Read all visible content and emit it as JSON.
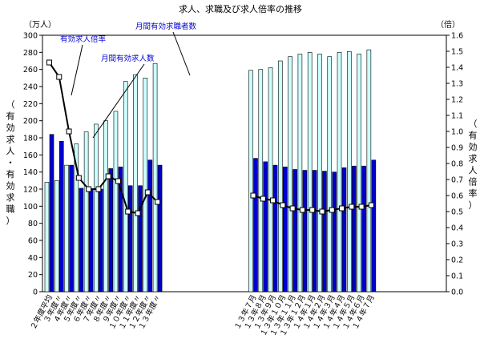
{
  "chart_data": {
    "type": "bar",
    "title": "求人、求職及び求人倍率の推移",
    "left_unit": "（万人）",
    "right_unit": "（倍）",
    "left_axis_label": [
      "（",
      "有",
      "効",
      "求",
      "人",
      "・",
      "有",
      "効",
      "求",
      "職",
      "）"
    ],
    "right_axis_label": [
      "（",
      "有",
      "効",
      "求",
      "人",
      "倍",
      "率",
      "）"
    ],
    "ylim_left": [
      0,
      300
    ],
    "ylim_right": [
      0,
      1.6
    ],
    "left_ticks": [
      "0",
      "20",
      "40",
      "60",
      "80",
      "100",
      "120",
      "140",
      "160",
      "180",
      "200",
      "220",
      "240",
      "260",
      "280",
      "300"
    ],
    "right_ticks": [
      "0.0",
      "0.1",
      "0.2",
      "0.3",
      "0.4",
      "0.5",
      "0.6",
      "0.7",
      "0.8",
      "0.9",
      "1.0",
      "1.1",
      "1.2",
      "1.3",
      "1.4",
      "1.5",
      "1.6"
    ],
    "categories": [
      "２年度平均",
      "３年度〃",
      "４年度〃",
      "５年度〃",
      "６年度〃",
      "７年度〃",
      "８年度〃",
      "９年度〃",
      "１０年度〃",
      "１１年度〃",
      "１２年度〃",
      "１３年度〃",
      "１３年７月",
      "１３年８月",
      "１３年９月",
      "１３年１０月",
      "１３年１１月",
      "１３年１２月",
      "１４年１月",
      "１４年２月",
      "１４年３月",
      "１４年４月",
      "１４年５月",
      "１４年６月",
      "１４年７月"
    ],
    "series": [
      {
        "name": "月間有効求職者数",
        "axis": "left",
        "values": [
          128,
          130,
          148,
          173,
          187,
          196,
          200,
          211,
          246,
          254,
          250,
          267,
          259,
          260,
          262,
          270,
          275,
          278,
          280,
          278,
          275,
          280,
          281,
          278,
          283
        ]
      },
      {
        "name": "月間有効求人数",
        "axis": "left",
        "values": [
          184,
          176,
          148,
          121,
          120,
          120,
          144,
          146,
          124,
          124,
          154,
          148,
          156,
          152,
          148,
          146,
          143,
          142,
          142,
          141,
          140,
          145,
          147,
          147,
          154
        ]
      },
      {
        "name": "有効求人倍率",
        "axis": "right",
        "values": [
          1.43,
          1.34,
          1.0,
          0.71,
          0.64,
          0.64,
          0.72,
          0.69,
          0.5,
          0.49,
          0.62,
          0.56,
          0.6,
          0.58,
          0.57,
          0.54,
          0.52,
          0.51,
          0.51,
          0.5,
          0.51,
          0.52,
          0.53,
          0.53,
          0.54
        ]
      }
    ],
    "colors": {
      "job_seekers": "#ccffff",
      "job_openings": "#0000cc",
      "ratio_line": "#000000",
      "label_text": "#0000cc"
    },
    "annotations": [
      {
        "text": "有効求人倍率",
        "series": "有効求人倍率"
      },
      {
        "text": "月間有効求人数",
        "series": "月間有効求人数"
      },
      {
        "text": "月間有効求職者数",
        "series": "月間有効求職者数"
      }
    ]
  }
}
